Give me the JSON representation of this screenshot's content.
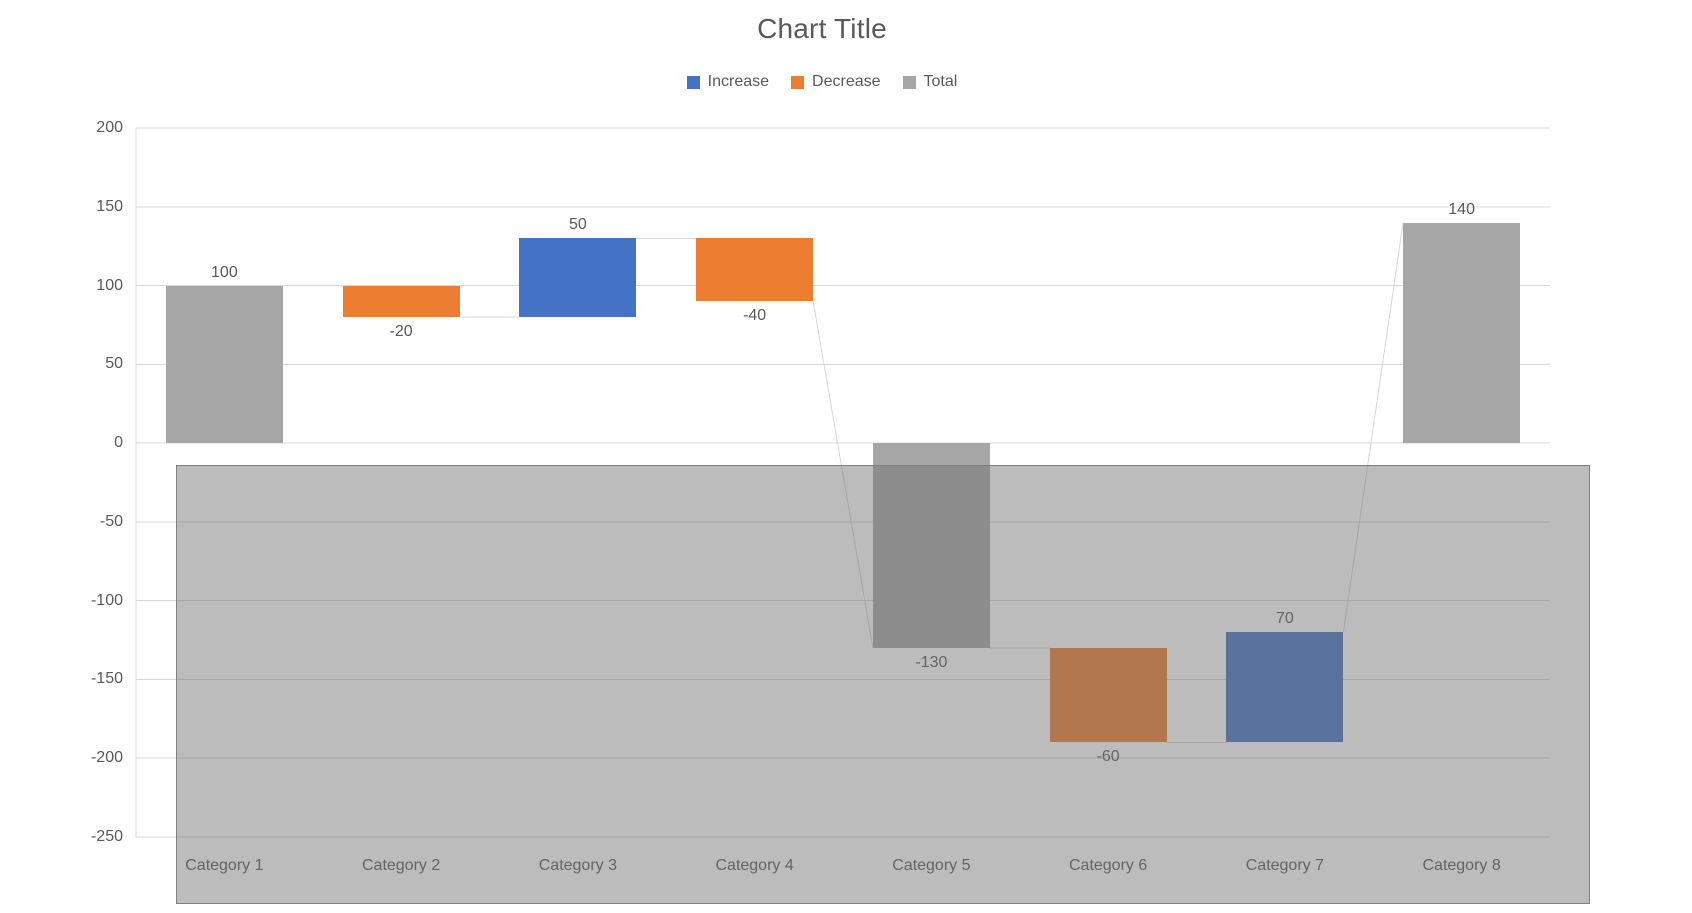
{
  "chart": {
    "title": "Chart Title",
    "colors": {
      "increase": "#4472C4",
      "decrease": "#ED7D31",
      "total": "#A6A6A6",
      "gridline": "#D9D9D9",
      "connector": "#D7D7D7",
      "axis_text": "#595959",
      "title_text": "#595959",
      "overlay_fill": "rgba(112,112,112,0.47)",
      "overlay_border": "#7F7F7F",
      "background": "#FFFFFF"
    },
    "legend": [
      {
        "id": "increase",
        "label": "Increase"
      },
      {
        "id": "decrease",
        "label": "Decrease"
      },
      {
        "id": "total",
        "label": "Total"
      }
    ]
  },
  "chart_data": {
    "type": "bar",
    "subtype": "waterfall",
    "title": "Chart Title",
    "categories": [
      "Category 1",
      "Category 2",
      "Category 3",
      "Category 4",
      "Category 5",
      "Category 6",
      "Category 7",
      "Category 8"
    ],
    "values": [
      100,
      -20,
      50,
      -40,
      -130,
      -60,
      70,
      140
    ],
    "bar_kinds": [
      "total",
      "decrease",
      "increase",
      "decrease",
      "total",
      "decrease",
      "increase",
      "total"
    ],
    "bar_starts": [
      0,
      100,
      80,
      130,
      0,
      -130,
      -190,
      0
    ],
    "bar_ends": [
      100,
      80,
      130,
      90,
      -130,
      -190,
      -120,
      140
    ],
    "data_labels": [
      "100",
      "-20",
      "50",
      "-40",
      "-130",
      "-60",
      "70",
      "140"
    ],
    "y_ticks": [
      200,
      150,
      100,
      50,
      0,
      -50,
      -100,
      -150,
      -200,
      -250
    ],
    "ylim": [
      -250,
      200
    ],
    "legend_entries": [
      "Increase",
      "Decrease",
      "Total"
    ],
    "legend_position": "top",
    "grid": true,
    "annotations": [
      "semi-transparent gray rectangle shape covering the lower portion of the plot and the category axis labels"
    ]
  }
}
